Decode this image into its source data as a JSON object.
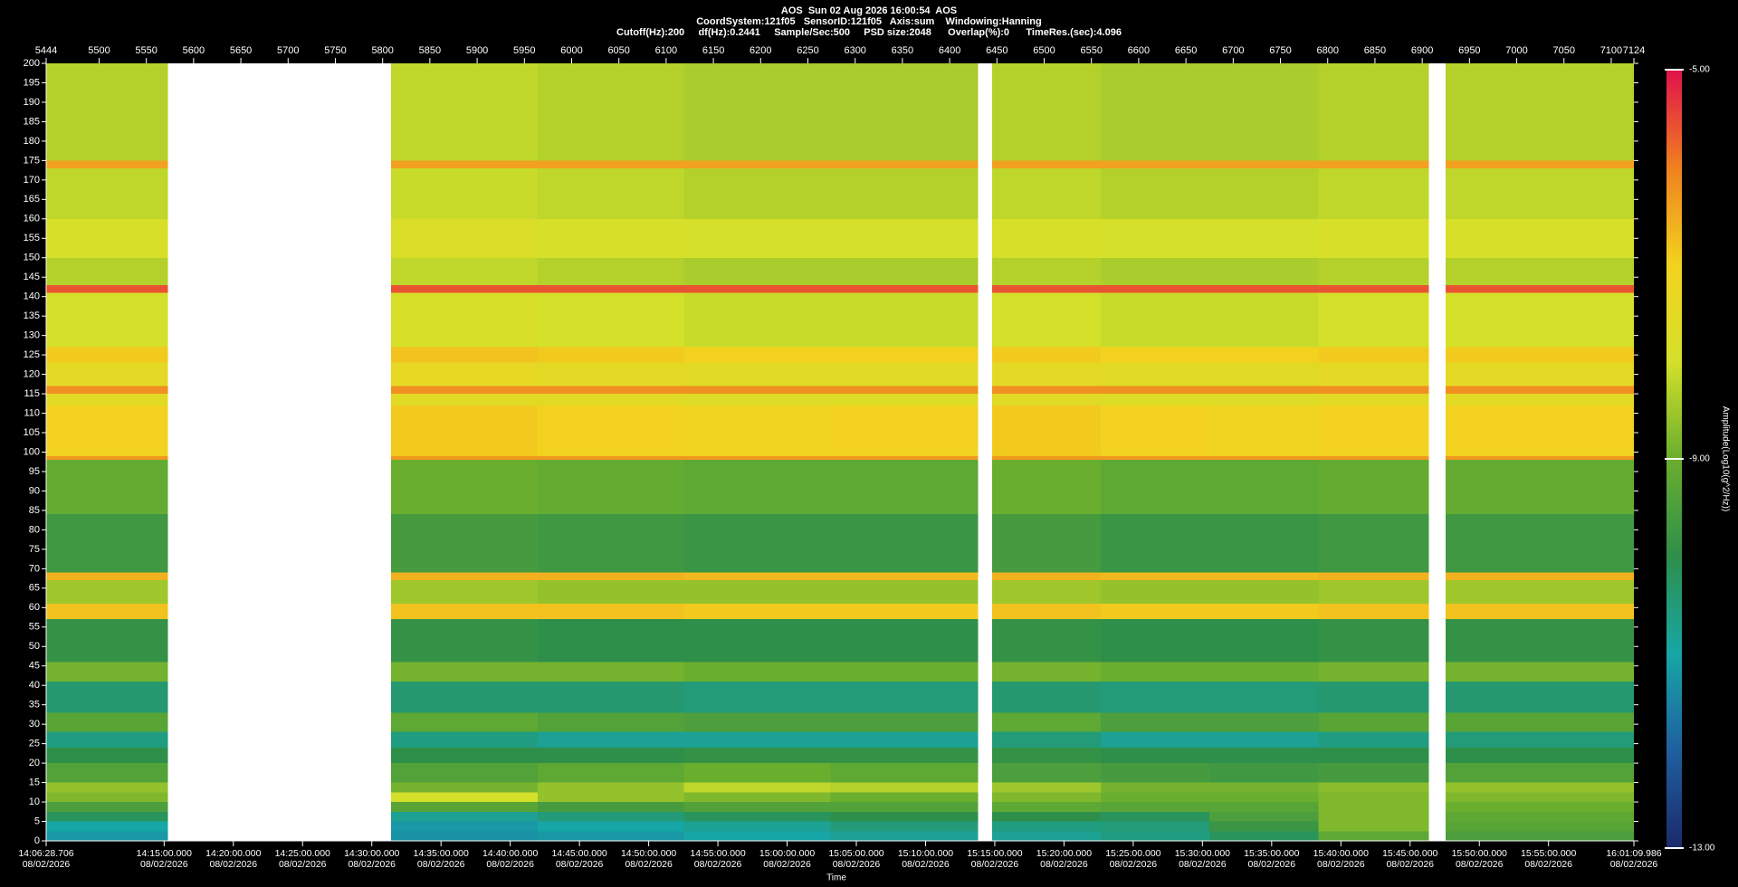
{
  "chart_data": {
    "type": "heatmap",
    "header": [
      "AOS  Sun 02 Aug 2026 16:00:54  AOS",
      "CoordSystem:121f05   SensorID:121f05   Axis:sum    Windowing:Hanning",
      "Cutoff(Hz):200     df(Hz):0.2441     Sample/Sec:500     PSD size:2048      Overlap(%):0      TimeRes.(sec):4.096"
    ],
    "x_label": "Time",
    "colorbar_label": "Amplitude(Log10(g^2/Hz))",
    "xlim": [
      5444,
      7124
    ],
    "x2ticks": [
      5444,
      5500,
      5550,
      5600,
      5650,
      5700,
      5750,
      5800,
      5850,
      5900,
      5950,
      6000,
      6050,
      6100,
      6150,
      6200,
      6250,
      6300,
      6350,
      6400,
      6450,
      6500,
      6550,
      6600,
      6650,
      6700,
      6750,
      6800,
      6850,
      6900,
      6950,
      7000,
      7050,
      7100,
      7124
    ],
    "xticks": [
      {
        "value": 5444,
        "label": "14:06:28.706\n08/02/2026"
      },
      {
        "value": 5568.83,
        "label": "14:15:00.000\n08/02/2026"
      },
      {
        "value": 5642.07,
        "label": "14:20:00.000\n08/02/2026"
      },
      {
        "value": 5715.31,
        "label": "14:25:00.000\n08/02/2026"
      },
      {
        "value": 5788.56,
        "label": "14:30:00.000\n08/02/2026"
      },
      {
        "value": 5861.8,
        "label": "14:35:00.000\n08/02/2026"
      },
      {
        "value": 5935.04,
        "label": "14:40:00.000\n08/02/2026"
      },
      {
        "value": 6008.28,
        "label": "14:45:00.000\n08/02/2026"
      },
      {
        "value": 6081.52,
        "label": "14:50:00.000\n08/02/2026"
      },
      {
        "value": 6154.77,
        "label": "14:55:00.000\n08/02/2026"
      },
      {
        "value": 6228.01,
        "label": "15:00:00.000\n08/02/2026"
      },
      {
        "value": 6301.25,
        "label": "15:05:00.000\n08/02/2026"
      },
      {
        "value": 6374.49,
        "label": "15:10:00.000\n08/02/2026"
      },
      {
        "value": 6447.73,
        "label": "15:15:00.000\n08/02/2026"
      },
      {
        "value": 6520.98,
        "label": "15:20:00.000\n08/02/2026"
      },
      {
        "value": 6594.22,
        "label": "15:25:00.000\n08/02/2026"
      },
      {
        "value": 6667.46,
        "label": "15:30:00.000\n08/02/2026"
      },
      {
        "value": 6740.7,
        "label": "15:35:00.000\n08/02/2026"
      },
      {
        "value": 6813.94,
        "label": "15:40:00.000\n08/02/2026"
      },
      {
        "value": 6887.19,
        "label": "15:45:00.000\n08/02/2026"
      },
      {
        "value": 6960.43,
        "label": "15:50:00.000\n08/02/2026"
      },
      {
        "value": 7033.67,
        "label": "15:55:00.000\n08/02/2026"
      },
      {
        "value": 7124,
        "label": "16:01:09.986\n08/02/2026"
      }
    ],
    "ylim": [
      0,
      200
    ],
    "yticks": [
      0,
      5,
      10,
      15,
      20,
      25,
      30,
      35,
      40,
      45,
      50,
      55,
      60,
      65,
      70,
      75,
      80,
      85,
      90,
      95,
      100,
      105,
      110,
      115,
      120,
      125,
      130,
      135,
      140,
      145,
      150,
      155,
      160,
      165,
      170,
      175,
      180,
      185,
      190,
      195,
      200
    ],
    "x_edges": [
      5444,
      5573,
      5809,
      5964,
      6119,
      6274,
      6430,
      6445,
      6560,
      6675,
      6790,
      6907,
      6925,
      7124
    ],
    "y_edges": [
      0,
      2.5,
      5,
      7.5,
      10,
      12.5,
      15,
      20,
      24,
      28,
      33,
      41,
      46,
      57,
      61,
      67,
      69,
      84,
      98,
      99,
      112,
      115,
      117,
      123,
      127,
      141,
      143,
      150,
      160,
      173,
      175,
      200
    ],
    "z": [
      [
        -11.2,
        null,
        -11.3,
        -11.2,
        -11.0,
        -10.8,
        null,
        -10.8,
        -10.6,
        -10.2,
        -9.2,
        null,
        -9.5
      ],
      [
        -11.0,
        null,
        -11.2,
        -11.0,
        -10.8,
        -10.5,
        null,
        -10.6,
        -10.5,
        -9.8,
        -8.8,
        null,
        -9.3
      ],
      [
        -10.2,
        null,
        -10.8,
        -10.5,
        -10.2,
        -10.0,
        null,
        -10.0,
        -10.2,
        -9.5,
        -8.8,
        null,
        -9.2
      ],
      [
        -9.5,
        null,
        -9.3,
        -9.6,
        -9.4,
        -9.4,
        null,
        -9.2,
        -9.3,
        -9.3,
        -8.8,
        null,
        -9.0
      ],
      [
        -8.8,
        null,
        -8.0,
        -8.6,
        -8.8,
        -9.0,
        null,
        -8.8,
        -9.0,
        -9.0,
        -8.8,
        null,
        -8.8
      ],
      [
        -8.6,
        null,
        -8.9,
        -8.6,
        -8.2,
        -8.3,
        null,
        -8.5,
        -8.9,
        -8.9,
        -8.7,
        null,
        -8.6
      ],
      [
        -9.4,
        null,
        -9.4,
        -9.2,
        -9.0,
        -9.2,
        null,
        -9.5,
        -9.6,
        -9.7,
        -9.6,
        null,
        -9.4
      ],
      [
        -10.0,
        null,
        -10.0,
        -10.0,
        -9.9,
        -9.9,
        null,
        -9.9,
        -10.0,
        -10.0,
        -10.0,
        null,
        -10.0
      ],
      [
        -10.6,
        null,
        -10.6,
        -10.8,
        -10.8,
        -10.8,
        null,
        -10.5,
        -10.8,
        -10.8,
        -10.6,
        null,
        -10.5
      ],
      [
        -9.3,
        null,
        -9.2,
        -9.4,
        -9.5,
        -9.5,
        null,
        -9.2,
        -9.5,
        -9.5,
        -9.3,
        null,
        -9.3
      ],
      [
        -10.4,
        null,
        -10.4,
        -10.4,
        -10.5,
        -10.5,
        null,
        -10.4,
        -10.5,
        -10.5,
        -10.4,
        null,
        -10.4
      ],
      [
        -8.9,
        null,
        -8.9,
        -8.9,
        -9.0,
        -9.0,
        null,
        -8.9,
        -9.0,
        -9.0,
        -8.9,
        null,
        -8.9
      ],
      [
        -9.9,
        null,
        -9.9,
        -10.0,
        -10.0,
        -10.0,
        null,
        -9.9,
        -10.0,
        -10.0,
        -9.9,
        null,
        -9.9
      ],
      [
        -6.8,
        null,
        -6.8,
        -6.8,
        -6.9,
        -6.9,
        null,
        -6.8,
        -6.9,
        -6.9,
        -6.8,
        null,
        -6.8
      ],
      [
        -8.5,
        null,
        -8.5,
        -8.6,
        -8.6,
        -8.6,
        null,
        -8.5,
        -8.6,
        -8.6,
        -8.5,
        null,
        -8.5
      ],
      [
        -6.6,
        null,
        -6.6,
        -6.6,
        -6.7,
        -6.7,
        null,
        -6.6,
        -6.7,
        -6.7,
        -6.6,
        null,
        -6.6
      ],
      [
        -9.7,
        null,
        -9.6,
        -9.7,
        -9.8,
        -9.8,
        null,
        -9.6,
        -9.8,
        -9.8,
        -9.7,
        null,
        -9.7
      ],
      [
        -9.1,
        null,
        -9.0,
        -9.1,
        -9.2,
        -9.2,
        null,
        -9.0,
        -9.2,
        -9.2,
        -9.1,
        null,
        -9.1
      ],
      [
        -6.3,
        null,
        -6.3,
        -6.3,
        -6.3,
        -6.3,
        null,
        -6.3,
        -6.3,
        -6.3,
        -6.3,
        null,
        -6.3
      ],
      [
        -7.0,
        null,
        -6.9,
        -7.0,
        -7.1,
        -7.0,
        null,
        -6.9,
        -7.0,
        -7.1,
        -7.0,
        null,
        -7.0
      ],
      [
        -7.6,
        null,
        -7.6,
        -7.6,
        -7.7,
        -7.7,
        null,
        -7.6,
        -7.7,
        -7.7,
        -7.6,
        null,
        -7.6
      ],
      [
        -6.2,
        null,
        -6.2,
        -6.2,
        -6.2,
        -6.2,
        null,
        -6.2,
        -6.2,
        -6.2,
        -6.2,
        null,
        -6.2
      ],
      [
        -7.5,
        null,
        -7.4,
        -7.5,
        -7.6,
        -7.6,
        null,
        -7.5,
        -7.6,
        -7.6,
        -7.5,
        null,
        -7.5
      ],
      [
        -6.9,
        null,
        -6.8,
        -6.9,
        -7.0,
        -7.0,
        null,
        -6.9,
        -7.0,
        -7.0,
        -6.9,
        null,
        -6.9
      ],
      [
        -8.0,
        null,
        -7.9,
        -8.0,
        -8.1,
        -8.1,
        null,
        -8.0,
        -8.1,
        -8.1,
        -8.0,
        null,
        -8.0
      ],
      [
        -5.6,
        null,
        -5.6,
        -5.6,
        -5.6,
        -5.6,
        null,
        -5.6,
        -5.6,
        -5.6,
        -5.6,
        null,
        -5.6
      ],
      [
        -8.3,
        null,
        -8.2,
        -8.3,
        -8.4,
        -8.4,
        null,
        -8.3,
        -8.4,
        -8.4,
        -8.3,
        null,
        -8.3
      ],
      [
        -7.9,
        null,
        -7.8,
        -7.9,
        -8.0,
        -8.0,
        null,
        -7.9,
        -8.0,
        -8.0,
        -7.9,
        null,
        -7.9
      ],
      [
        -8.2,
        null,
        -8.1,
        -8.2,
        -8.3,
        -8.3,
        null,
        -8.2,
        -8.3,
        -8.3,
        -8.2,
        null,
        -8.2
      ],
      [
        -6.4,
        null,
        -6.4,
        -6.4,
        -6.4,
        -6.4,
        null,
        -6.4,
        -6.4,
        -6.4,
        -6.4,
        null,
        -6.4
      ],
      [
        -8.3,
        null,
        -8.2,
        -8.3,
        -8.4,
        -8.4,
        null,
        -8.3,
        -8.4,
        -8.4,
        -8.3,
        null,
        -8.3
      ]
    ],
    "clim": [
      -13,
      -5
    ],
    "cticks": [
      {
        "value": -5,
        "label": "-5.00"
      },
      {
        "value": -9,
        "label": "-9.00"
      },
      {
        "value": -13,
        "label": "-13.00"
      }
    ],
    "colorscale": [
      [
        -13,
        "#1b2a6b"
      ],
      [
        -12,
        "#1f5fa0"
      ],
      [
        -11,
        "#17a6a6"
      ],
      [
        -10,
        "#2e8f4a"
      ],
      [
        -9,
        "#6aae2e"
      ],
      [
        -8,
        "#d4e02a"
      ],
      [
        -7,
        "#f2d21e"
      ],
      [
        -6,
        "#f08020"
      ],
      [
        -5,
        "#e0104a"
      ]
    ]
  }
}
